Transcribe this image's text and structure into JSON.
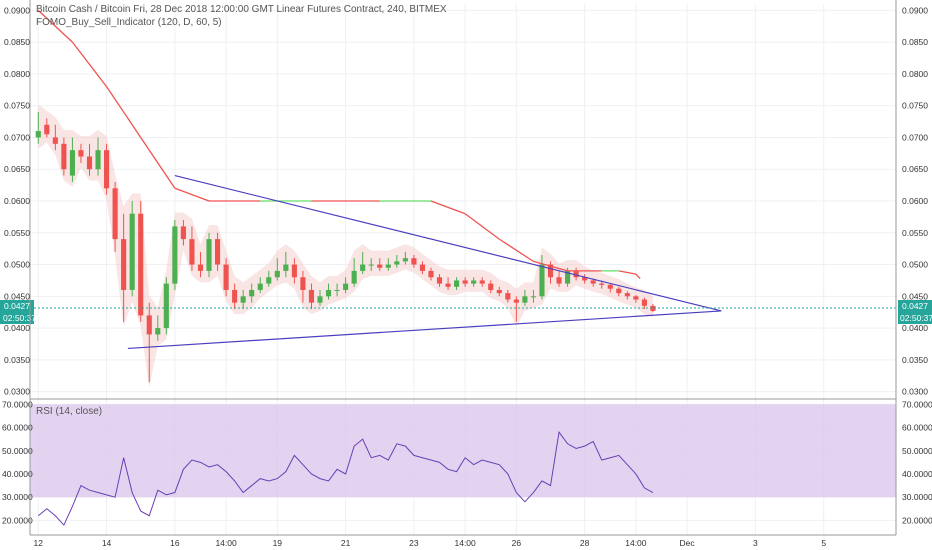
{
  "header": {
    "title": "Bitcoin Cash / Bitcoin Fri, 28 Dec 2018 12:00:00 GMT Linear Futures Contract, 240, BITMEX",
    "indicator": "FOMO_Buy_Sell_Indicator (120, D, 60, 5)",
    "rsi_label": "RSI (14, close)"
  },
  "price_badge": {
    "price": "0.0427",
    "countdown": "02:50:37",
    "color": "#26a69a"
  },
  "colors": {
    "up": "#4caf50",
    "down": "#ef5350",
    "trend": "#4b3fbf",
    "rsi_line": "#6a3fb5",
    "rsi_band": "#dcc8ec"
  },
  "chart_data": [
    {
      "type": "candlestick",
      "title": "Bitcoin Cash / Bitcoin",
      "ylim": [
        0.029,
        0.091
      ],
      "ylabel_ticks": [
        "0.0300",
        "0.0350",
        "0.0400",
        "0.0450",
        "0.0500",
        "0.0550",
        "0.0600",
        "0.0650",
        "0.0700",
        "0.0750",
        "0.0800",
        "0.0850",
        "0.0900"
      ],
      "xlabel_ticks": [
        {
          "label": "12",
          "x": 0
        },
        {
          "label": "14",
          "x": 8
        },
        {
          "label": "16",
          "x": 16
        },
        {
          "label": "14:00",
          "x": 22
        },
        {
          "label": "19",
          "x": 28
        },
        {
          "label": "21",
          "x": 36
        },
        {
          "label": "23",
          "x": 44
        },
        {
          "label": "14:00",
          "x": 50
        },
        {
          "label": "26",
          "x": 56
        },
        {
          "label": "28",
          "x": 64
        },
        {
          "label": "14:00",
          "x": 70
        },
        {
          "label": "Dec",
          "x": 76
        },
        {
          "label": "3",
          "x": 84
        },
        {
          "label": "5",
          "x": 92
        }
      ],
      "x_domain": [
        -0.5,
        100
      ],
      "close": [
        0.071,
        0.0705,
        0.069,
        0.065,
        0.068,
        0.067,
        0.065,
        0.068,
        0.062,
        0.054,
        0.046,
        0.058,
        0.042,
        0.039,
        0.04,
        0.047,
        0.056,
        0.054,
        0.05,
        0.049,
        0.054,
        0.05,
        0.046,
        0.044,
        0.045,
        0.046,
        0.047,
        0.048,
        0.049,
        0.05,
        0.048,
        0.046,
        0.044,
        0.045,
        0.046,
        0.046,
        0.047,
        0.049,
        0.05,
        0.05,
        0.0495,
        0.05,
        0.0505,
        0.051,
        0.05,
        0.049,
        0.048,
        0.047,
        0.0465,
        0.0475,
        0.047,
        0.0475,
        0.047,
        0.046,
        0.0455,
        0.0445,
        0.044,
        0.045,
        0.045,
        0.05,
        0.048,
        0.047,
        0.049,
        0.048,
        0.0475,
        0.047,
        0.0468,
        0.0462,
        0.0455,
        0.045,
        0.0445,
        0.0435,
        0.0427
      ],
      "open": [
        0.07,
        0.072,
        0.07,
        0.069,
        0.064,
        0.068,
        0.067,
        0.065,
        0.068,
        0.062,
        0.054,
        0.046,
        0.058,
        0.042,
        0.039,
        0.04,
        0.047,
        0.056,
        0.054,
        0.05,
        0.049,
        0.054,
        0.05,
        0.046,
        0.044,
        0.045,
        0.046,
        0.047,
        0.048,
        0.049,
        0.05,
        0.048,
        0.046,
        0.044,
        0.045,
        0.046,
        0.046,
        0.047,
        0.049,
        0.05,
        0.05,
        0.0495,
        0.05,
        0.0505,
        0.051,
        0.05,
        0.049,
        0.048,
        0.047,
        0.0465,
        0.0475,
        0.047,
        0.0475,
        0.047,
        0.046,
        0.0455,
        0.0445,
        0.044,
        0.045,
        0.045,
        0.05,
        0.048,
        0.047,
        0.049,
        0.048,
        0.0475,
        0.047,
        0.0468,
        0.0462,
        0.0455,
        0.045,
        0.0445,
        0.0435
      ],
      "high": [
        0.074,
        0.073,
        0.072,
        0.07,
        0.07,
        0.069,
        0.069,
        0.07,
        0.069,
        0.063,
        0.058,
        0.06,
        0.06,
        0.044,
        0.042,
        0.048,
        0.057,
        0.057,
        0.056,
        0.052,
        0.055,
        0.055,
        0.051,
        0.047,
        0.046,
        0.047,
        0.048,
        0.049,
        0.051,
        0.052,
        0.051,
        0.049,
        0.047,
        0.046,
        0.047,
        0.047,
        0.048,
        0.051,
        0.052,
        0.051,
        0.051,
        0.051,
        0.0515,
        0.052,
        0.0515,
        0.0505,
        0.0495,
        0.0485,
        0.048,
        0.048,
        0.048,
        0.048,
        0.048,
        0.0475,
        0.0465,
        0.046,
        0.045,
        0.046,
        0.046,
        0.0515,
        0.0505,
        0.049,
        0.0495,
        0.0495,
        0.0485,
        0.0478,
        0.0475,
        0.047,
        0.0465,
        0.0458,
        0.0452,
        0.0448,
        0.0438
      ],
      "low": [
        0.069,
        0.07,
        0.068,
        0.064,
        0.063,
        0.066,
        0.064,
        0.064,
        0.061,
        0.052,
        0.041,
        0.045,
        0.041,
        0.0315,
        0.038,
        0.039,
        0.046,
        0.053,
        0.049,
        0.048,
        0.048,
        0.049,
        0.045,
        0.043,
        0.043,
        0.044,
        0.0455,
        0.0465,
        0.0475,
        0.048,
        0.047,
        0.044,
        0.043,
        0.0435,
        0.0445,
        0.045,
        0.0455,
        0.0465,
        0.0485,
        0.049,
        0.049,
        0.049,
        0.0495,
        0.05,
        0.0495,
        0.0485,
        0.0475,
        0.0465,
        0.046,
        0.046,
        0.0465,
        0.0465,
        0.0465,
        0.0455,
        0.045,
        0.044,
        0.041,
        0.0435,
        0.044,
        0.0445,
        0.047,
        0.0465,
        0.0465,
        0.0475,
        0.047,
        0.0465,
        0.0462,
        0.0456,
        0.045,
        0.0445,
        0.044,
        0.043,
        0.0425
      ],
      "indicator_line": {
        "x": [
          0,
          4,
          8,
          12,
          16,
          20,
          26,
          32,
          40,
          46,
          50,
          54,
          58,
          62,
          66,
          68,
          70,
          70.5
        ],
        "y": [
          0.09,
          0.085,
          0.078,
          0.07,
          0.062,
          0.06,
          0.06,
          0.06,
          0.06,
          0.06,
          0.058,
          0.054,
          0.0505,
          0.049,
          0.049,
          0.049,
          0.0485,
          0.0478
        ]
      },
      "trend_lines": [
        {
          "x": [
            16,
            80
          ],
          "y": [
            0.064,
            0.0427
          ]
        },
        {
          "x": [
            10.5,
            80
          ],
          "y": [
            0.0368,
            0.0427
          ]
        }
      ],
      "current_price": 0.0427
    },
    {
      "type": "line",
      "title": "RSI (14, close)",
      "ylim": [
        15,
        71
      ],
      "band": [
        30,
        70
      ],
      "ylabel_ticks": [
        "20.0000",
        "30.0000",
        "40.0000",
        "50.0000",
        "60.0000",
        "70.0000"
      ],
      "x": [
        0,
        1,
        2,
        3,
        4,
        5,
        6,
        7,
        8,
        9,
        10,
        11,
        12,
        13,
        14,
        15,
        16,
        17,
        18,
        19,
        20,
        21,
        22,
        23,
        24,
        25,
        26,
        27,
        28,
        29,
        30,
        31,
        32,
        33,
        34,
        35,
        36,
        37,
        38,
        39,
        40,
        41,
        42,
        43,
        44,
        45,
        46,
        47,
        48,
        49,
        50,
        51,
        52,
        53,
        54,
        55,
        56,
        57,
        58,
        59,
        60,
        61,
        62,
        63,
        64,
        65,
        66,
        67,
        68,
        69,
        70,
        71,
        72
      ],
      "y": [
        22,
        25,
        22,
        18,
        26,
        35,
        33,
        32,
        31,
        30,
        47,
        32,
        24,
        22,
        33,
        31,
        32,
        42,
        46,
        45,
        43,
        44,
        41,
        37,
        32,
        35,
        38,
        37,
        38,
        41,
        48,
        44,
        40,
        38,
        37,
        42,
        40,
        52,
        55,
        47,
        48,
        46,
        53,
        52,
        48,
        47,
        46,
        45,
        42,
        41,
        47,
        44,
        46,
        45,
        44,
        40,
        32,
        28,
        32,
        37,
        35,
        58,
        53,
        51,
        52,
        54,
        46,
        47,
        48,
        44,
        40,
        34,
        32
      ]
    }
  ]
}
